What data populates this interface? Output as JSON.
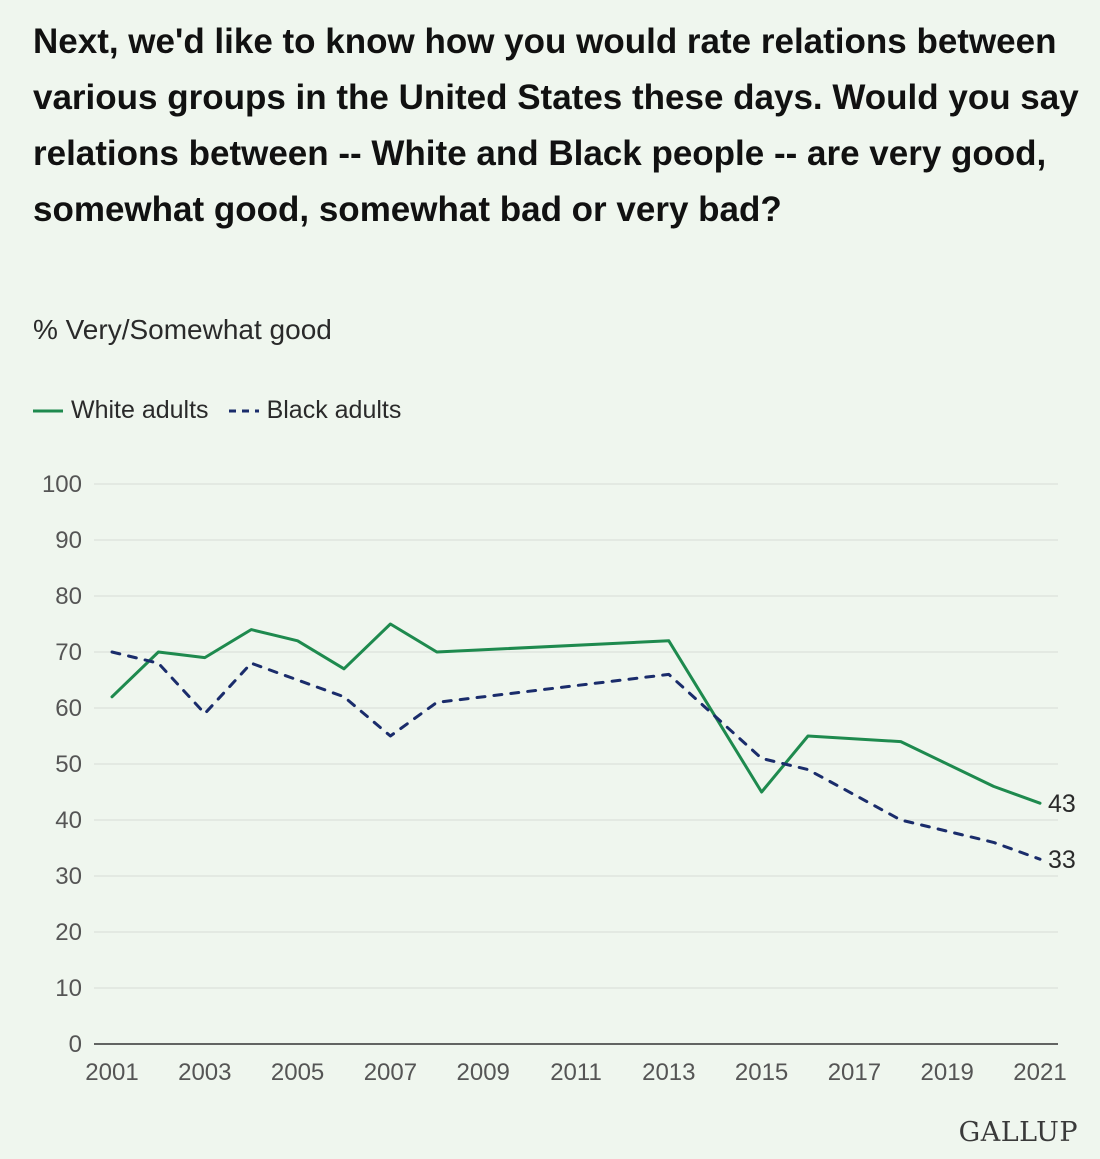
{
  "title": "Next, we'd like to know how you would rate relations between various groups in the United States these days. Would you say relations between -- White and Black people -- are very good, somewhat good, somewhat bad or very bad?",
  "subtitle": "% Very/Somewhat good",
  "logo": "GALLUP",
  "colors": {
    "white": "#1e8a4e",
    "black": "#1a2c6b",
    "grid": "#d7dcd6",
    "background": "#eff6ee"
  },
  "chart_data": {
    "type": "line",
    "title": "% Very/Somewhat good",
    "xlabel": "",
    "ylabel": "",
    "xlim": [
      2001,
      2021
    ],
    "ylim": [
      0,
      100
    ],
    "yticks": [
      0,
      10,
      20,
      30,
      40,
      50,
      60,
      70,
      80,
      90,
      100
    ],
    "xticks": [
      2001,
      2003,
      2005,
      2007,
      2009,
      2011,
      2013,
      2015,
      2017,
      2019,
      2021
    ],
    "legend": "top-left",
    "series": [
      {
        "name": "White adults",
        "style": "solid",
        "x": [
          2001,
          2002,
          2003,
          2004,
          2005,
          2006,
          2007,
          2008,
          2013,
          2015,
          2016,
          2018,
          2020,
          2021
        ],
        "values": [
          62,
          70,
          69,
          74,
          72,
          67,
          75,
          70,
          72,
          45,
          55,
          54,
          46,
          43
        ],
        "end_label": "43"
      },
      {
        "name": "Black adults",
        "style": "dashed",
        "x": [
          2001,
          2002,
          2003,
          2004,
          2005,
          2006,
          2007,
          2008,
          2013,
          2015,
          2016,
          2018,
          2020,
          2021
        ],
        "values": [
          70,
          68,
          59,
          68,
          65,
          62,
          55,
          61,
          66,
          51,
          49,
          40,
          36,
          33
        ],
        "end_label": "33"
      }
    ]
  }
}
